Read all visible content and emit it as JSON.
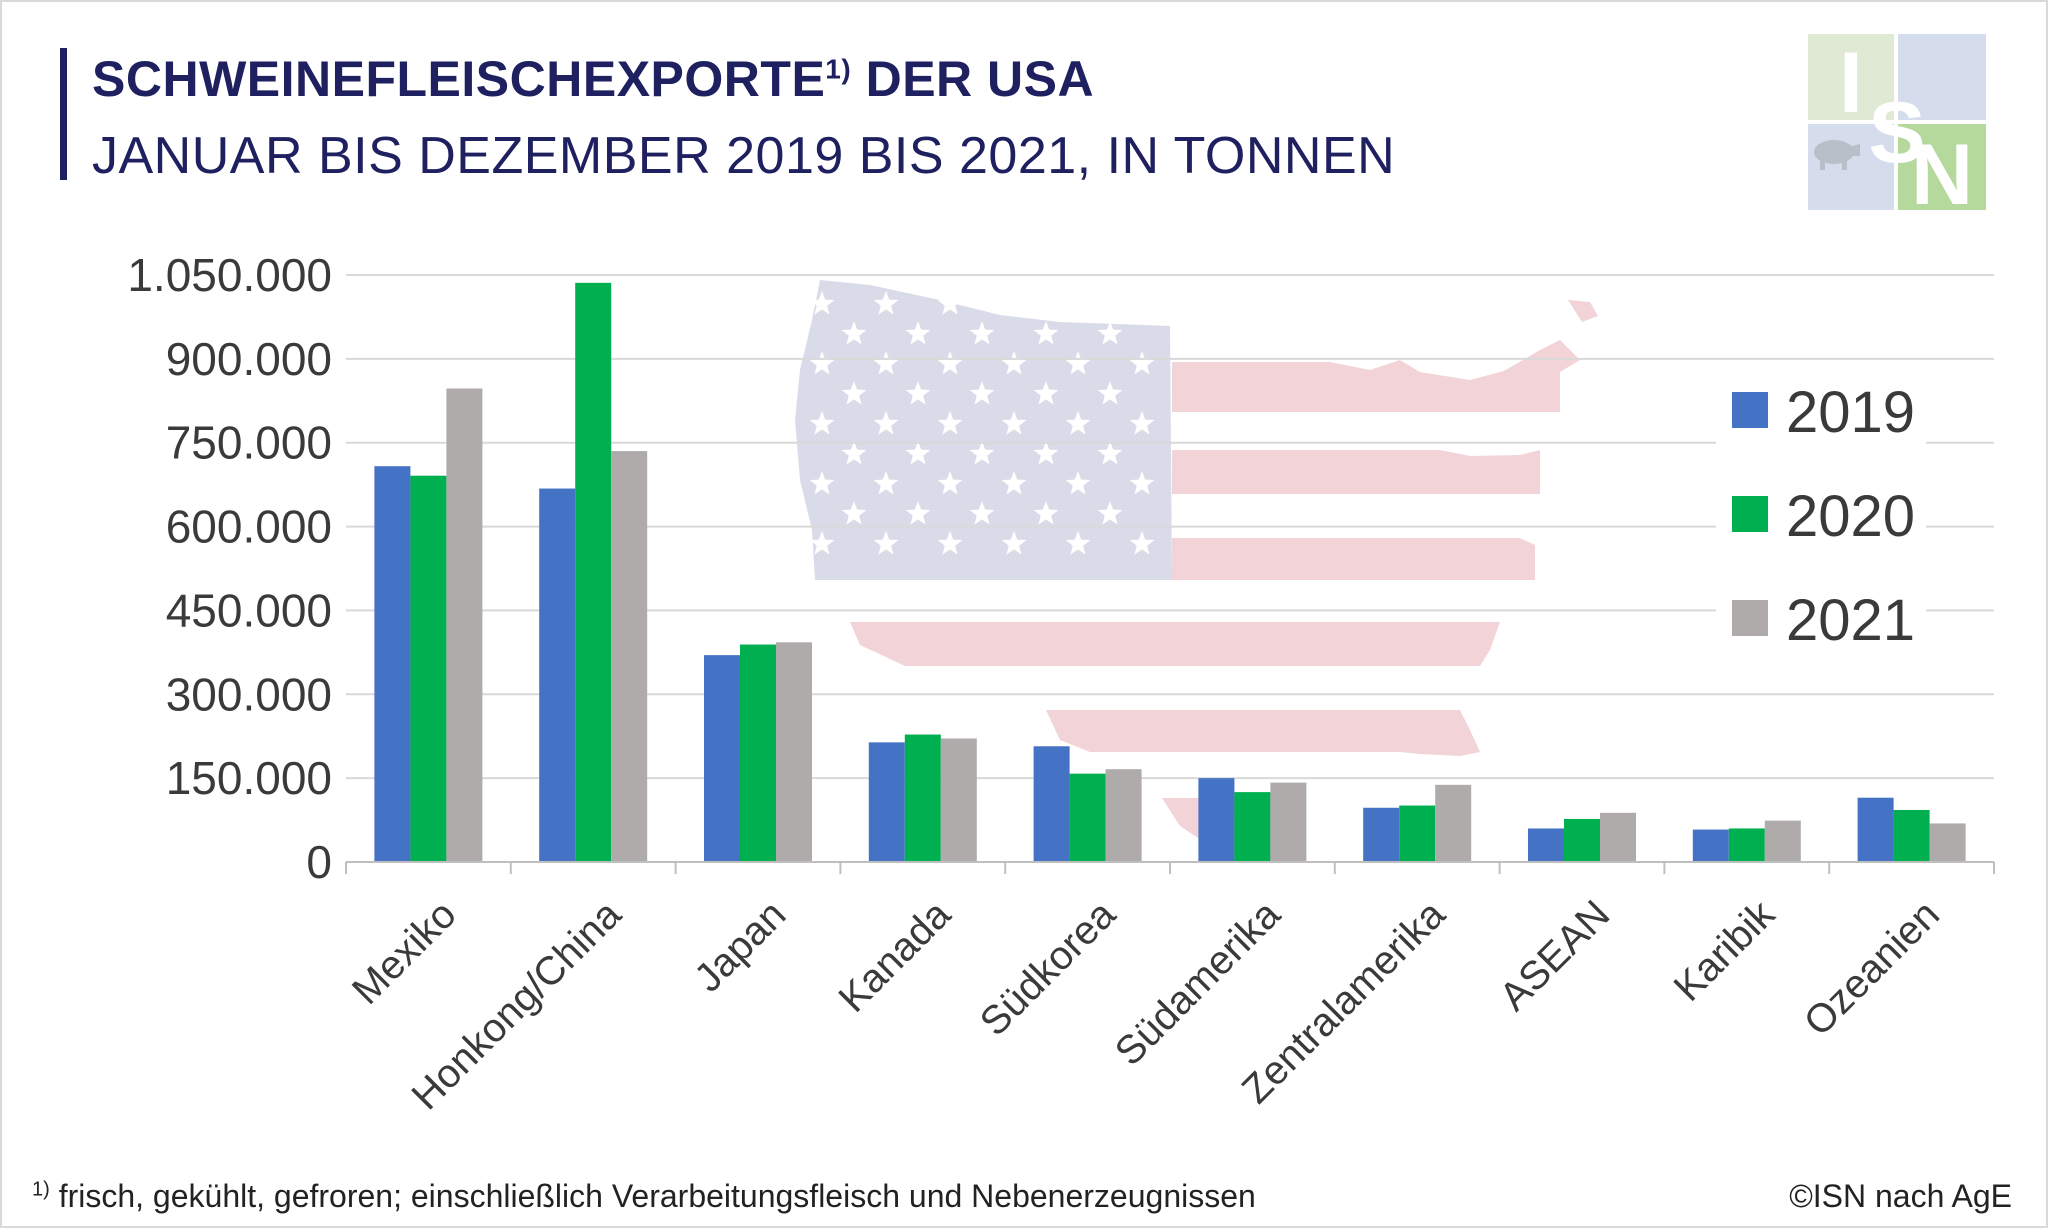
{
  "header": {
    "title_part1": "SCHWEINEFLEISCHEXPORTE",
    "title_sup": "1)",
    "title_part2": " DER USA",
    "subtitle": "JANUAR BIS DEZEMBER 2019 BIS 2021, IN TONNEN"
  },
  "logo": {
    "letters": [
      "I",
      "S",
      "N"
    ],
    "icon": "pig-icon",
    "colors": [
      "#dfe9d3",
      "#d5dcec",
      "#b5d89c"
    ]
  },
  "footer": {
    "footnote_sup": "1)",
    "footnote": " frisch, gekühlt, gefroren; einschließlich Verarbeitungsfleisch und Nebenerzeugnissen",
    "source": "©ISN nach AgE"
  },
  "background_icon": "usa-flag-map-icon",
  "chart_data": {
    "type": "bar",
    "categories": [
      "Mexiko",
      "Honkong/China",
      "Japan",
      "Kanada",
      "Südkorea",
      "Südamerika",
      "Zentralamerika",
      "ASEAN",
      "Karibik",
      "Ozeanien"
    ],
    "series": [
      {
        "name": "2019",
        "color": "#4472c4",
        "values": [
          708000,
          668000,
          370000,
          214000,
          207000,
          150000,
          97000,
          60000,
          58000,
          115000
        ]
      },
      {
        "name": "2020",
        "color": "#00b050",
        "values": [
          691000,
          1036000,
          389000,
          228000,
          158000,
          125000,
          101000,
          77000,
          60000,
          93000
        ]
      },
      {
        "name": "2021",
        "color": "#afabab",
        "values": [
          847000,
          735000,
          393000,
          221000,
          166000,
          142000,
          138000,
          88000,
          74000,
          69000
        ]
      }
    ],
    "ylim": [
      0,
      1050000
    ],
    "yticks": [
      0,
      150000,
      300000,
      450000,
      600000,
      750000,
      900000,
      1050000
    ],
    "ytick_labels": [
      "0",
      "150.000",
      "300.000",
      "450.000",
      "600.000",
      "750.000",
      "900.000",
      "1.050.000"
    ],
    "grid": true,
    "legend_position": "right"
  }
}
